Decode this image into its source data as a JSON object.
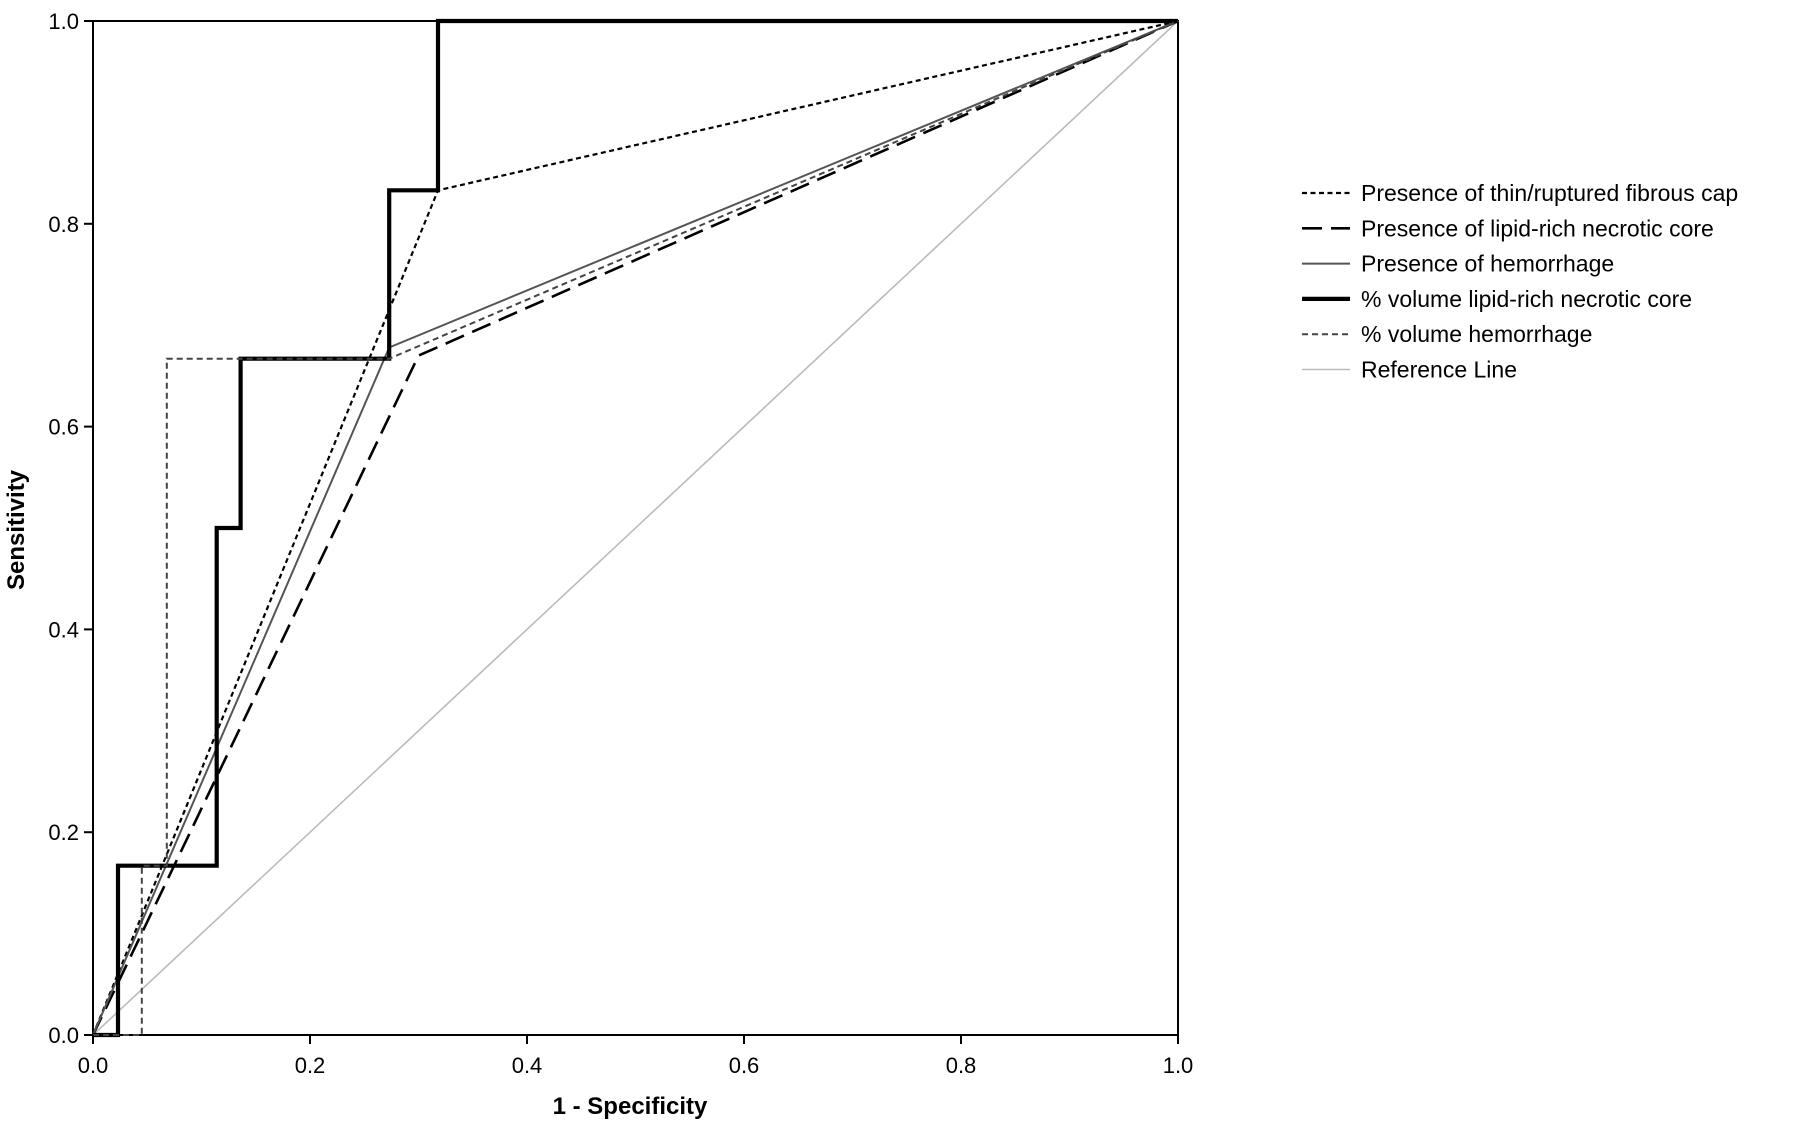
{
  "chart_data": {
    "type": "line",
    "title": "",
    "xlabel": "1 - Specificity",
    "ylabel": "Sensitivity",
    "xlim": [
      0,
      1
    ],
    "ylim": [
      0,
      1
    ],
    "x_ticks": [
      "0.0",
      "0.2",
      "0.4",
      "0.6",
      "0.8",
      "1.0"
    ],
    "y_ticks": [
      "0.0",
      "0.2",
      "0.4",
      "0.6",
      "0.8",
      "1.0"
    ],
    "grid": false,
    "legend_position": "right",
    "series": [
      {
        "name": "Presence of thin/ruptured fibrous cap",
        "style": "dotted",
        "color": "#000000",
        "points": [
          [
            0,
            0
          ],
          [
            0.318,
            0.833
          ],
          [
            1,
            1
          ]
        ]
      },
      {
        "name": "Presence of lipid-rich necrotic core",
        "style": "dashed",
        "color": "#000000",
        "points": [
          [
            0,
            0
          ],
          [
            0.3,
            0.67
          ],
          [
            1,
            1
          ]
        ]
      },
      {
        "name": "Presence of hemorrhage",
        "style": "solid",
        "color": "#555555",
        "points": [
          [
            0,
            0
          ],
          [
            0.273,
            0.678
          ],
          [
            1,
            1
          ]
        ]
      },
      {
        "name": "% volume lipid-rich necrotic core",
        "style": "thick",
        "color": "#000000",
        "points": [
          [
            0,
            0
          ],
          [
            0.023,
            0
          ],
          [
            0.023,
            0.167
          ],
          [
            0.114,
            0.167
          ],
          [
            0.114,
            0.5
          ],
          [
            0.136,
            0.5
          ],
          [
            0.136,
            0.667
          ],
          [
            0.273,
            0.667
          ],
          [
            0.273,
            0.833
          ],
          [
            0.318,
            0.833
          ],
          [
            0.318,
            1
          ],
          [
            1,
            1
          ]
        ]
      },
      {
        "name": "% volume hemorrhage",
        "style": "short-dash",
        "color": "#444444",
        "points": [
          [
            0,
            0
          ],
          [
            0.045,
            0
          ],
          [
            0.045,
            0.167
          ],
          [
            0.068,
            0.167
          ],
          [
            0.068,
            0.667
          ],
          [
            0.273,
            0.667
          ],
          [
            1,
            1
          ]
        ]
      },
      {
        "name": "Reference Line",
        "style": "reference",
        "color": "#bbbbbb",
        "points": [
          [
            0,
            0
          ],
          [
            1,
            1
          ]
        ]
      }
    ]
  }
}
